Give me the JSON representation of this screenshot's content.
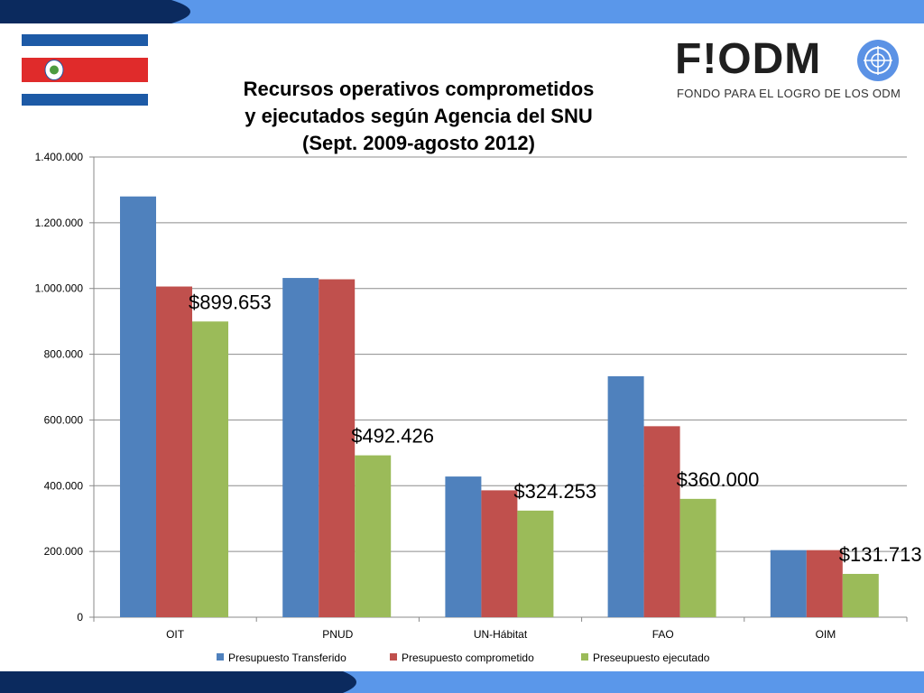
{
  "header": {
    "title_lines": [
      "Recursos operativos comprometidos",
      "y ejecutados según Agencia del SNU",
      "(Sept. 2009-agosto 2012)"
    ]
  },
  "logo": {
    "wordmark": "F!ODM",
    "tagline": "FONDO PARA EL LOGRO DE LOS ODM"
  },
  "colors": {
    "band_blue": "#4f8fe8",
    "band_dark": "#0b2a5e",
    "flag_blue": "#1d5aa6",
    "flag_red": "#e02b2b",
    "series": [
      "#4f81bd",
      "#c0504d",
      "#9bbb59"
    ]
  },
  "chart_data": {
    "type": "bar",
    "categories": [
      "OIT",
      "PNUD",
      "UN-Hábitat",
      "FAO",
      "OIM"
    ],
    "series": [
      {
        "name": "Presupuesto Transferido",
        "values": [
          1280000,
          1032000,
          428000,
          733000,
          204000
        ]
      },
      {
        "name": "Presupuesto comprometido",
        "values": [
          1006000,
          1028000,
          386000,
          581000,
          204000
        ]
      },
      {
        "name": "Preseupuesto ejecutado",
        "values": [
          899653,
          492426,
          324253,
          360000,
          131713
        ]
      }
    ],
    "ylim": [
      0,
      1400000
    ],
    "yticks": [
      "0",
      "200.000",
      "400.000",
      "600.000",
      "800.000",
      "1.000.000",
      "1.200.000",
      "1.400.000"
    ],
    "callouts": [
      "$899.653",
      "$492.426",
      "$324.253",
      "$360.000",
      "$131.713"
    ],
    "grid": true,
    "legend_position": "bottom"
  }
}
